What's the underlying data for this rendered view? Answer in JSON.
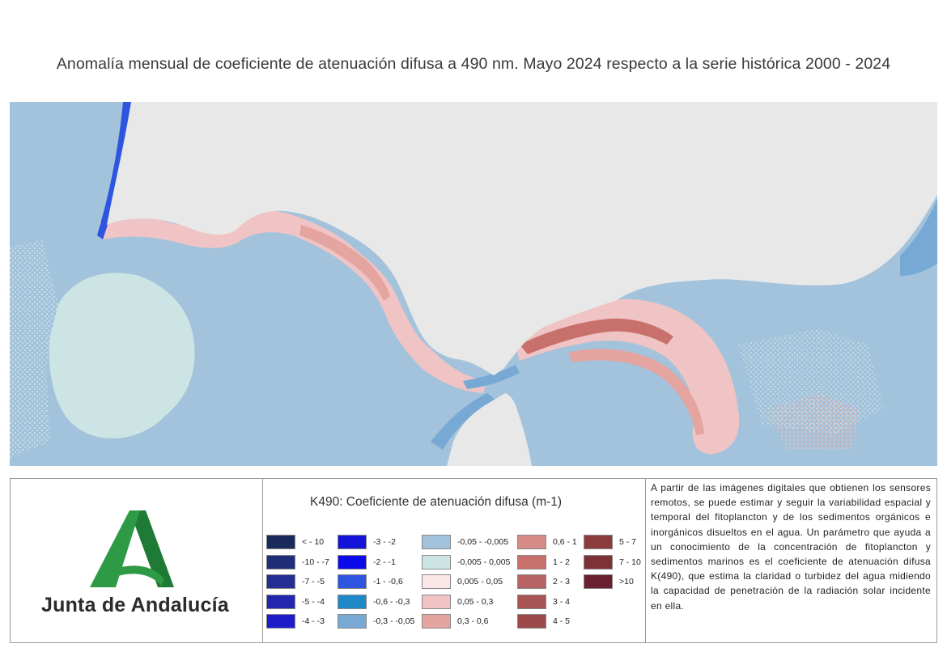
{
  "title": "Anomalía mensual de coeficiente de atenuación difusa a 490 nm. Mayo 2024 respecto a la serie histórica 2000 - 2024",
  "logo": {
    "text": "Junta de Andalucía",
    "brand_color": "#2e8b3e"
  },
  "legend": {
    "title": "K490: Coeficiente de atenuación difusa (m-1)",
    "columns": [
      [
        {
          "label": "< - 10",
          "color": "#1b2a5c"
        },
        {
          "label": "-10 - -7",
          "color": "#1f2e78"
        },
        {
          "label": "-7 - -5",
          "color": "#232d92"
        },
        {
          "label": "-5 - -4",
          "color": "#2226ae"
        },
        {
          "label": "-4 - -3",
          "color": "#1c1cc8"
        }
      ],
      [
        {
          "label": "-3 - -2",
          "color": "#1414d8"
        },
        {
          "label": "-2 - -1",
          "color": "#0a0aea"
        },
        {
          "label": "-1 - -0,6",
          "color": "#2e55e0"
        },
        {
          "label": "-0,6 - -0,3",
          "color": "#1e88c8"
        },
        {
          "label": "-0,3 - -0,05",
          "color": "#78a8d4"
        }
      ],
      [
        {
          "label": "-0,05 - -0,005",
          "color": "#a3c3dc"
        },
        {
          "label": "-0,005 - 0,005",
          "color": "#cde4e4"
        },
        {
          "label": "0,005 - 0,05",
          "color": "#fae6e6"
        },
        {
          "label": "0,05 - 0,3",
          "color": "#f0c4c4"
        },
        {
          "label": "0,3 - 0,6",
          "color": "#e4a4a0"
        }
      ],
      [
        {
          "label": "0,6 - 1",
          "color": "#d88c88"
        },
        {
          "label": "1 - 2",
          "color": "#c8706c"
        },
        {
          "label": "2 - 3",
          "color": "#b86464"
        },
        {
          "label": "3 - 4",
          "color": "#a85454"
        },
        {
          "label": "4 - 5",
          "color": "#9c4a4a"
        }
      ],
      [
        {
          "label": "5 - 7",
          "color": "#8c3c3c"
        },
        {
          "label": "7 - 10",
          "color": "#7e3236"
        },
        {
          "label": ">10",
          "color": "#6a2030"
        }
      ]
    ]
  },
  "description": "A partir de las imágenes digitales que obtienen los sensores remotos, se puede estimar y seguir la variabilidad espacial y temporal del fitoplancton y de los sedimentos orgánicos e inorgánicos disueltos en el agua. Un parámetro que ayuda a un conocimiento de la concentración de fitoplancton y sedimentos marinos es el coeficiente de atenuación difusa K(490), que estima la claridad o turbidez del agua midiendo la capacidad de penetración de la radiación solar incidente en ella.",
  "map_colors": {
    "land": "#e8e8e8",
    "sea": "#a3c3dc",
    "near_zero": "#cde4e4",
    "positive_low": "#f0c4c4",
    "positive_mid": "#e4a4a0",
    "positive_high": "#c8706c",
    "negative": "#78a8d4",
    "strong_negative": "#2e55e0"
  }
}
